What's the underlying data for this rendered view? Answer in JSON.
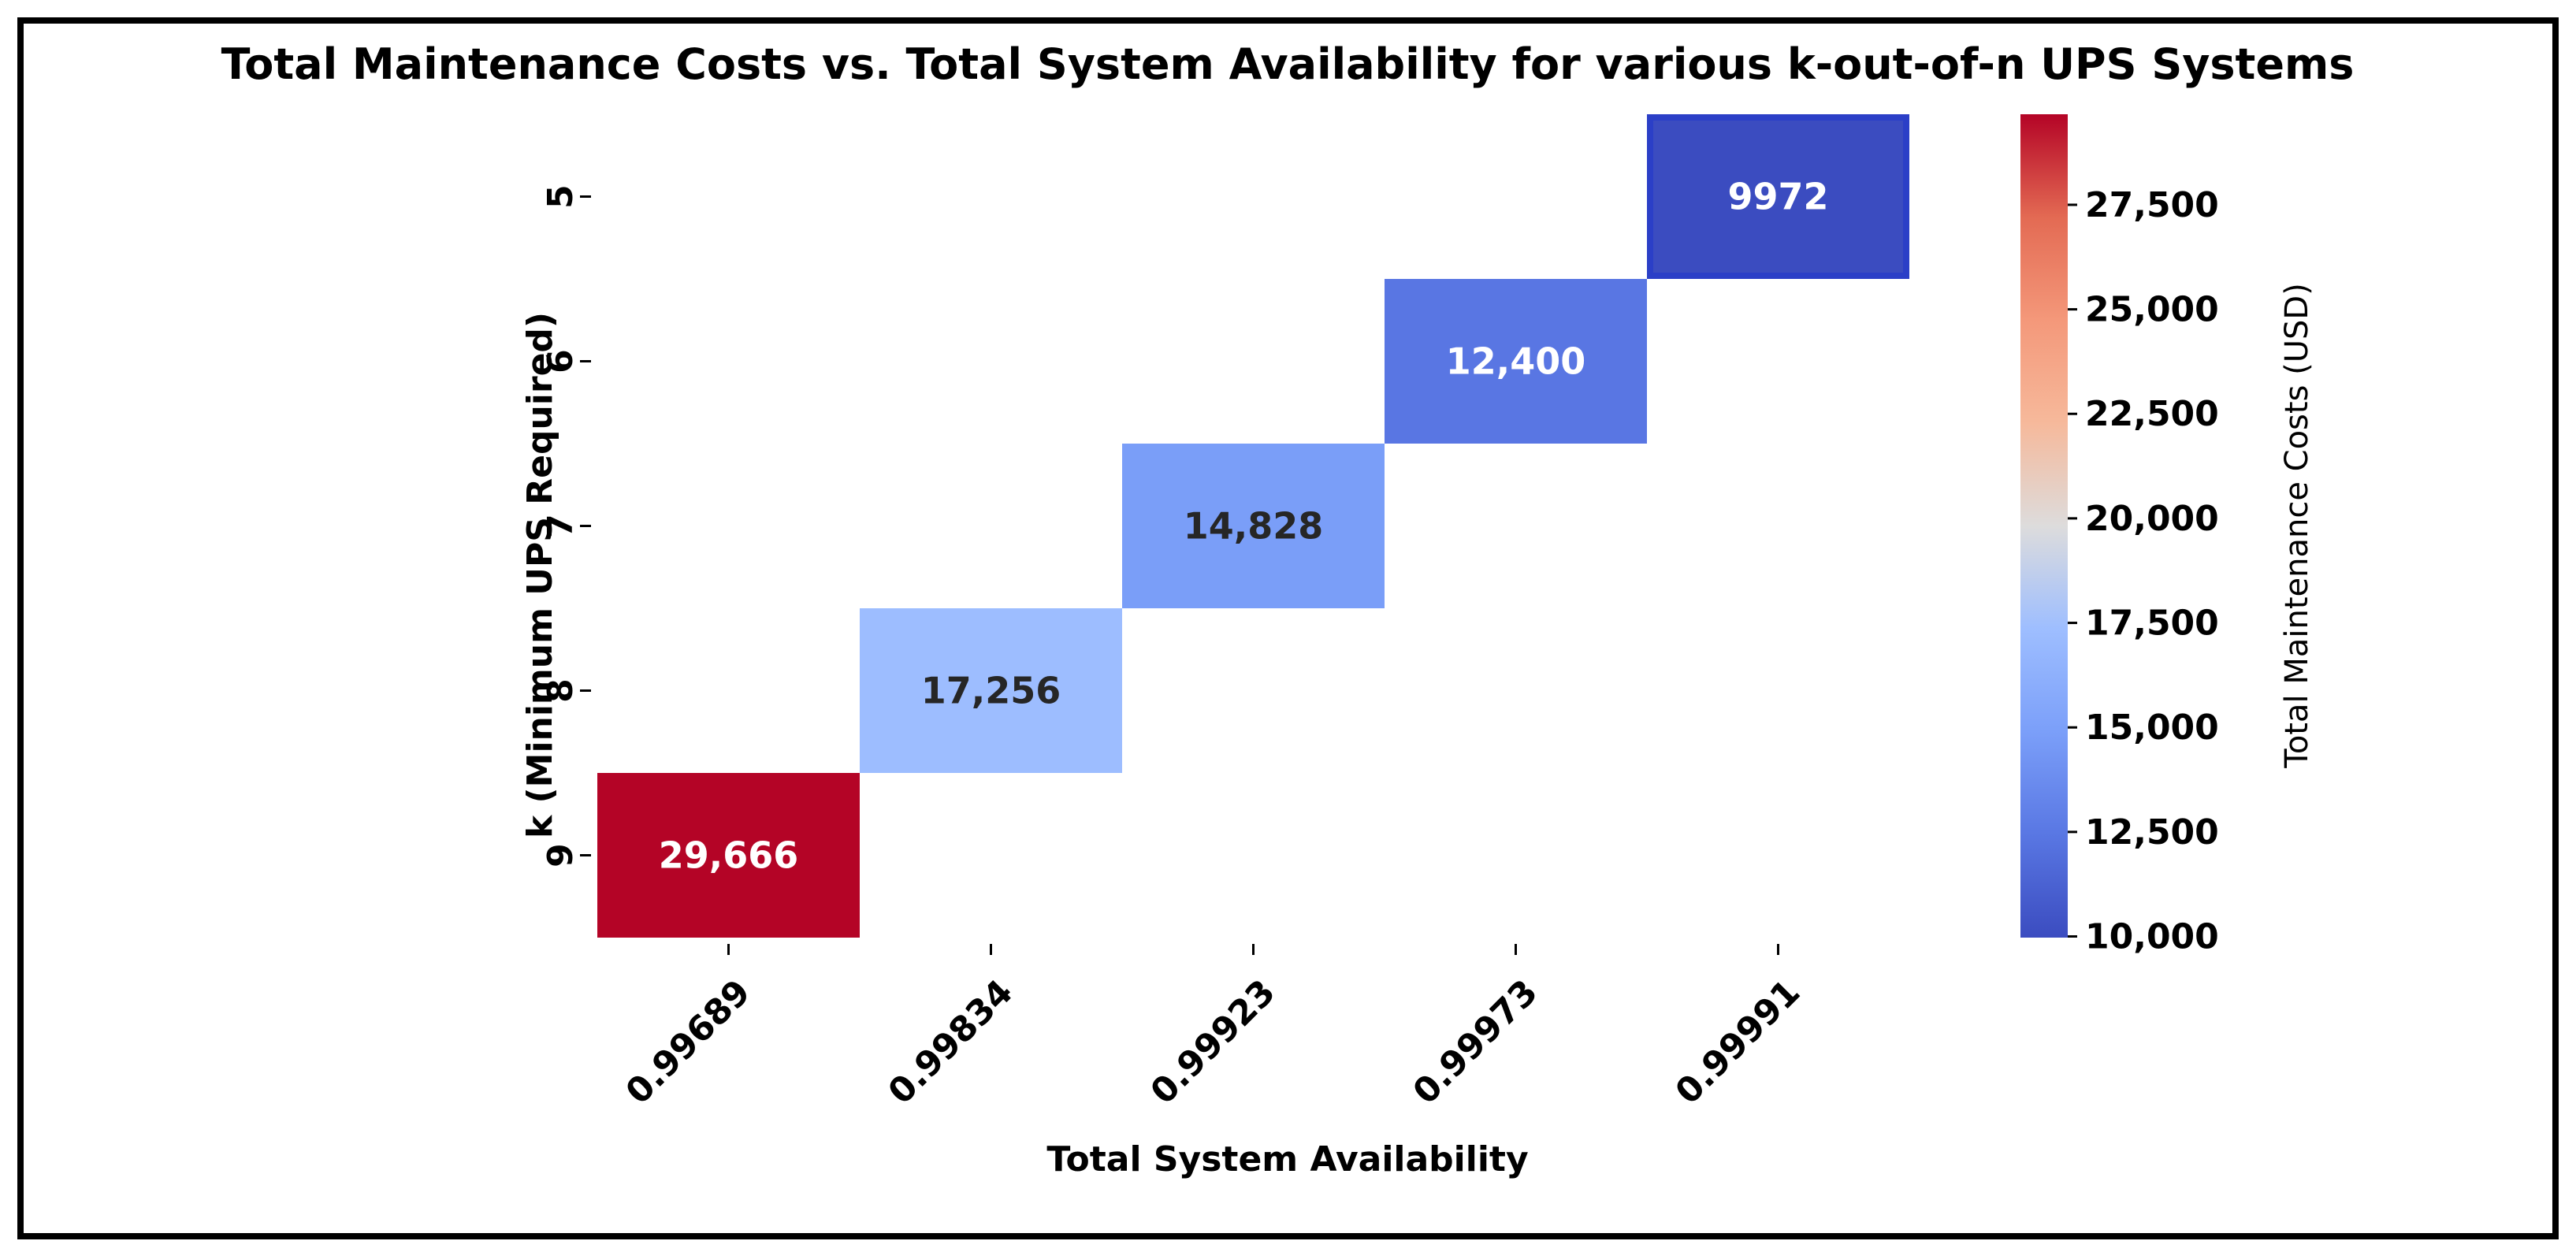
{
  "chart_data": {
    "type": "heatmap",
    "title": "Total Maintenance Costs vs. Total System Availability for various k-out-of-n UPS Systems",
    "xlabel": "Total System Availability",
    "ylabel": "k (Minimum UPS Required)",
    "x_categories": [
      "0.99689",
      "0.99834",
      "0.99923",
      "0.99973",
      "0.99991"
    ],
    "y_categories": [
      "5",
      "6",
      "7",
      "8",
      "9"
    ],
    "cells": [
      {
        "x": "0.99991",
        "y": "5",
        "value": 9972,
        "label": "9972",
        "highlighted": true
      },
      {
        "x": "0.99973",
        "y": "6",
        "value": 12400,
        "label": "12,400",
        "highlighted": false
      },
      {
        "x": "0.99923",
        "y": "7",
        "value": 14828,
        "label": "14,828",
        "highlighted": false
      },
      {
        "x": "0.99834",
        "y": "8",
        "value": 17256,
        "label": "17,256",
        "highlighted": false
      },
      {
        "x": "0.99689",
        "y": "9",
        "value": 29666,
        "label": "29,666",
        "highlighted": false
      }
    ],
    "colorbar": {
      "label": "Total Maintenance Costs (USD)",
      "colormap": "coolwarm",
      "range": [
        9972,
        29666
      ],
      "ticks": [
        10000,
        12500,
        15000,
        17500,
        20000,
        22500,
        25000,
        27500
      ],
      "tick_labels": [
        "10,000",
        "12,500",
        "15,000",
        "17,500",
        "20,000",
        "22,500",
        "25,000",
        "27,500"
      ]
    },
    "highlight_color": "#2b3fc7",
    "grid": false
  }
}
